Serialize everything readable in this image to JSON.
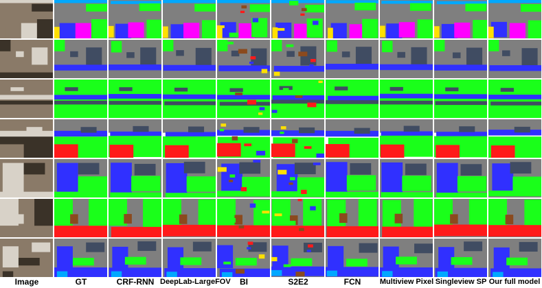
{
  "figure": {
    "columns": [
      "Image",
      "GT",
      "CRF-RNN",
      "DeepLab-LargeFOV",
      "BI",
      "S2E2",
      "FCN",
      "Multiview Pixel",
      "Singleview SP",
      "Our full model"
    ],
    "rows": 7,
    "palette": {
      "wall": "#7f7f7f",
      "floor": "#ff1a1a",
      "counter": "#1aff1a",
      "cabinet": "#3030ff",
      "object": "#404c62",
      "appliance": "#ff00ff",
      "misc": "#ffe000",
      "furniture": "#8b4a1e",
      "sky": "#00a8ff",
      "photo_dark": "#3a3228",
      "photo_mid": "#8a7a68",
      "photo_light": "#d8d2c8"
    }
  }
}
